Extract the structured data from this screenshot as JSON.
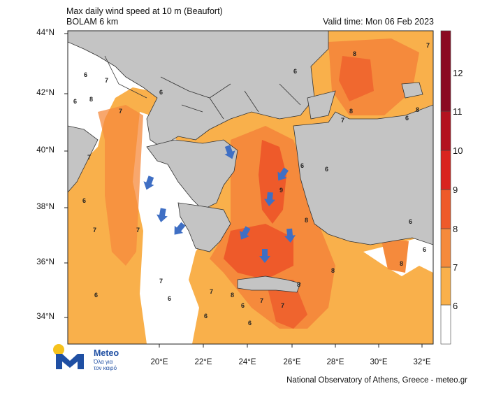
{
  "header": {
    "title": "Max daily wind speed at 10 m (Beaufort)",
    "model": "BOLAM 6 km",
    "valid_time": "Valid time: Mon 06 Feb 2023"
  },
  "axes": {
    "lat_labels": [
      "44°N",
      "42°N",
      "40°N",
      "38°N",
      "36°N",
      "34°N"
    ],
    "lon_labels": [
      "20°E",
      "22°E",
      "24°E",
      "26°E",
      "28°E",
      "30°E",
      "32°E"
    ]
  },
  "colorbar": {
    "labels": [
      "6",
      "7",
      "8",
      "9",
      "10",
      "11",
      "12"
    ],
    "colors": [
      "#ffffff",
      "#f9b04b",
      "#f58a3c",
      "#ee5a2a",
      "#d9241f",
      "#b3121f",
      "#8b0a22"
    ]
  },
  "map_annotations": [
    "6",
    "7",
    "8",
    "9"
  ],
  "wind_arrows": [
    "arrow",
    "arrow",
    "arrow",
    "arrow",
    "arrow",
    "arrow",
    "arrow",
    "arrow",
    "arrow",
    "arrow"
  ],
  "logo": {
    "name": "Meteo",
    "slogan": "Όλα για τον καιρό"
  },
  "footer": "National Observatory of Athens, Greece - meteo.gr"
}
